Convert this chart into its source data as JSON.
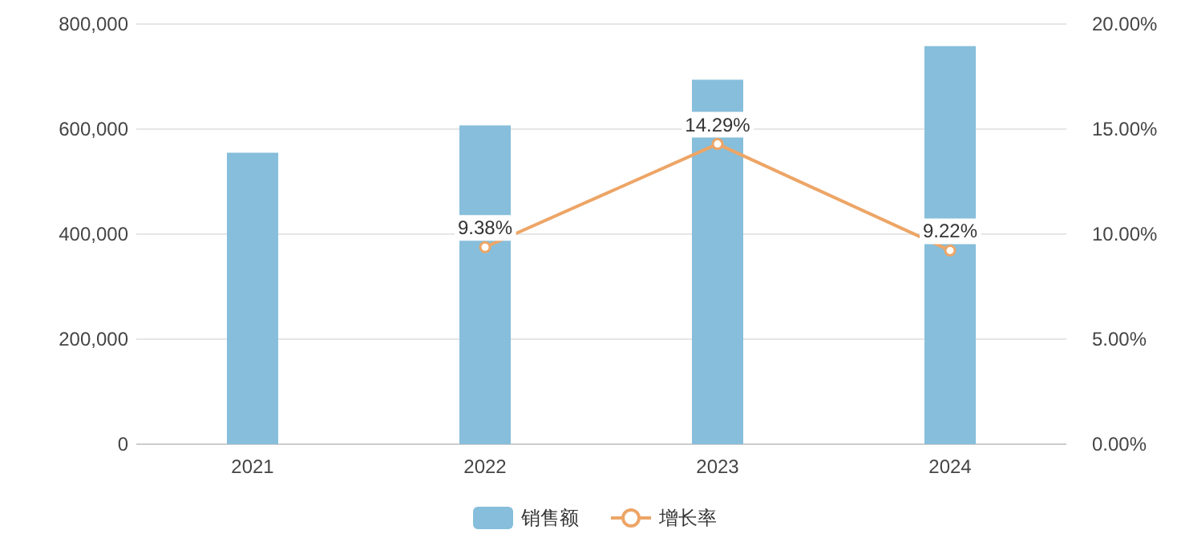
{
  "chart_data": {
    "type": "bar",
    "categories": [
      "2021",
      "2022",
      "2023",
      "2024"
    ],
    "series": [
      {
        "name": "销售额",
        "color": "#86bedb",
        "values": [
          555000,
          607000,
          694000,
          758000
        ]
      },
      {
        "name": "增长率",
        "type": "line",
        "axis": "y2",
        "color": "#eda566",
        "values": [
          null,
          9.38,
          14.29,
          9.22
        ],
        "value_labels": [
          null,
          "9.38%",
          "14.29%",
          "9.22%"
        ]
      }
    ],
    "ylim": [
      0,
      800000
    ],
    "yticks": [
      0,
      {
        "value": 200000,
        "label": "200,000"
      },
      {
        "value": 400000,
        "label": "400,000"
      },
      {
        "value": 600000,
        "label": "600,000"
      },
      {
        "value": 800000,
        "label": "800,000"
      }
    ],
    "y2lim": [
      0,
      20
    ],
    "y2ticks": [
      {
        "value": 0,
        "label": "0.00%"
      },
      {
        "value": 5,
        "label": "5.00%"
      },
      {
        "value": 10,
        "label": "10.00%"
      },
      {
        "value": 15,
        "label": "15.00%"
      },
      {
        "value": 20,
        "label": "20.00%"
      }
    ],
    "grid": "y",
    "legend": "bottom",
    "marker": "circle"
  }
}
